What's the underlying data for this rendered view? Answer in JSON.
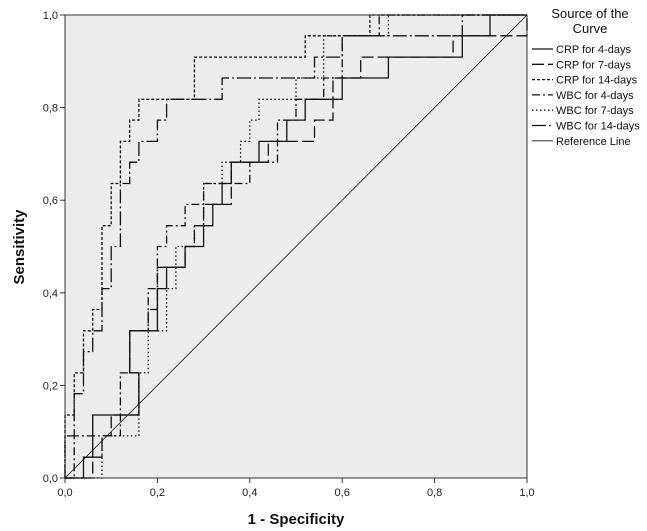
{
  "chart_data": {
    "type": "line",
    "title": "",
    "xlabel": "1 - Specificity",
    "ylabel": "Sensitivity",
    "xlim": [
      0,
      1
    ],
    "ylim": [
      0,
      1
    ],
    "xticks": [
      "0,0",
      "0,2",
      "0,4",
      "0,6",
      "0,8",
      "1,0"
    ],
    "yticks": [
      "0,0",
      "0,2",
      "0,4",
      "0,6",
      "0,8",
      "1,0"
    ],
    "grid": false,
    "plot_background": "#ececec",
    "legend": {
      "title_line1": "Source of the",
      "title_line2": "Curve",
      "placement": "right"
    },
    "series": [
      {
        "name": "CRP for 4-days",
        "dash": "solid",
        "points": [
          [
            0,
            0
          ],
          [
            0.04,
            0
          ],
          [
            0.04,
            0.045
          ],
          [
            0.06,
            0.045
          ],
          [
            0.06,
            0.136
          ],
          [
            0.1,
            0.136
          ],
          [
            0.1,
            0.136
          ],
          [
            0.16,
            0.136
          ],
          [
            0.16,
            0.227
          ],
          [
            0.14,
            0.227
          ],
          [
            0.14,
            0.318
          ],
          [
            0.2,
            0.318
          ],
          [
            0.2,
            0.409
          ],
          [
            0.22,
            0.409
          ],
          [
            0.22,
            0.455
          ],
          [
            0.26,
            0.455
          ],
          [
            0.26,
            0.5
          ],
          [
            0.3,
            0.5
          ],
          [
            0.3,
            0.545
          ],
          [
            0.32,
            0.545
          ],
          [
            0.32,
            0.591
          ],
          [
            0.34,
            0.591
          ],
          [
            0.34,
            0.636
          ],
          [
            0.36,
            0.636
          ],
          [
            0.36,
            0.682
          ],
          [
            0.42,
            0.682
          ],
          [
            0.42,
            0.727
          ],
          [
            0.48,
            0.727
          ],
          [
            0.48,
            0.773
          ],
          [
            0.52,
            0.773
          ],
          [
            0.52,
            0.818
          ],
          [
            0.6,
            0.818
          ],
          [
            0.6,
            0.864
          ],
          [
            0.7,
            0.864
          ],
          [
            0.7,
            0.909
          ],
          [
            0.86,
            0.909
          ],
          [
            0.86,
            0.955
          ],
          [
            0.92,
            0.955
          ],
          [
            0.92,
            1.0
          ],
          [
            1.0,
            1.0
          ]
        ]
      },
      {
        "name": "CRP for 7-days",
        "dash": "longdash",
        "points": [
          [
            0,
            0
          ],
          [
            0.06,
            0
          ],
          [
            0.06,
            0.045
          ],
          [
            0.08,
            0.045
          ],
          [
            0.08,
            0.091
          ],
          [
            0.1,
            0.091
          ],
          [
            0.1,
            0.136
          ],
          [
            0.16,
            0.136
          ],
          [
            0.16,
            0.227
          ],
          [
            0.14,
            0.227
          ],
          [
            0.14,
            0.318
          ],
          [
            0.18,
            0.318
          ],
          [
            0.18,
            0.364
          ],
          [
            0.2,
            0.364
          ],
          [
            0.2,
            0.455
          ],
          [
            0.26,
            0.455
          ],
          [
            0.26,
            0.5
          ],
          [
            0.28,
            0.5
          ],
          [
            0.28,
            0.545
          ],
          [
            0.3,
            0.545
          ],
          [
            0.3,
            0.591
          ],
          [
            0.36,
            0.591
          ],
          [
            0.36,
            0.682
          ],
          [
            0.44,
            0.682
          ],
          [
            0.44,
            0.727
          ],
          [
            0.54,
            0.727
          ],
          [
            0.54,
            0.773
          ],
          [
            0.58,
            0.773
          ],
          [
            0.58,
            0.864
          ],
          [
            0.64,
            0.864
          ],
          [
            0.64,
            0.909
          ],
          [
            0.84,
            0.909
          ],
          [
            0.84,
            0.955
          ],
          [
            1.0,
            0.955
          ],
          [
            1.0,
            1.0
          ]
        ]
      },
      {
        "name": "CRP for 14-days",
        "dash": "shortdash",
        "points": [
          [
            0,
            0
          ],
          [
            0,
            0.136
          ],
          [
            0.02,
            0.136
          ],
          [
            0.02,
            0.227
          ],
          [
            0.04,
            0.227
          ],
          [
            0.04,
            0.318
          ],
          [
            0.06,
            0.318
          ],
          [
            0.06,
            0.364
          ],
          [
            0.08,
            0.364
          ],
          [
            0.08,
            0.545
          ],
          [
            0.1,
            0.545
          ],
          [
            0.1,
            0.636
          ],
          [
            0.12,
            0.636
          ],
          [
            0.12,
            0.727
          ],
          [
            0.14,
            0.727
          ],
          [
            0.14,
            0.773
          ],
          [
            0.16,
            0.773
          ],
          [
            0.16,
            0.818
          ],
          [
            0.28,
            0.818
          ],
          [
            0.28,
            0.909
          ],
          [
            0.52,
            0.909
          ],
          [
            0.52,
            0.955
          ],
          [
            0.66,
            0.955
          ],
          [
            0.66,
            1.0
          ],
          [
            1.0,
            1.0
          ]
        ]
      },
      {
        "name": "WBC for 4-days",
        "dash": "dashdot",
        "points": [
          [
            0,
            0
          ],
          [
            0.02,
            0
          ],
          [
            0.02,
            0.091
          ],
          [
            0.12,
            0.091
          ],
          [
            0.12,
            0.227
          ],
          [
            0.14,
            0.227
          ],
          [
            0.14,
            0.318
          ],
          [
            0.18,
            0.318
          ],
          [
            0.18,
            0.409
          ],
          [
            0.2,
            0.409
          ],
          [
            0.2,
            0.5
          ],
          [
            0.22,
            0.5
          ],
          [
            0.22,
            0.545
          ],
          [
            0.26,
            0.545
          ],
          [
            0.26,
            0.591
          ],
          [
            0.3,
            0.591
          ],
          [
            0.3,
            0.636
          ],
          [
            0.4,
            0.636
          ],
          [
            0.4,
            0.682
          ],
          [
            0.46,
            0.682
          ],
          [
            0.46,
            0.773
          ],
          [
            0.5,
            0.773
          ],
          [
            0.5,
            0.818
          ],
          [
            0.56,
            0.818
          ],
          [
            0.56,
            0.864
          ],
          [
            0.6,
            0.864
          ],
          [
            0.6,
            0.955
          ],
          [
            0.68,
            0.955
          ],
          [
            0.68,
            1.0
          ],
          [
            1.0,
            1.0
          ]
        ]
      },
      {
        "name": "WBC for 7-days",
        "dash": "dotted",
        "points": [
          [
            0,
            0
          ],
          [
            0.08,
            0
          ],
          [
            0.08,
            0.091
          ],
          [
            0.16,
            0.091
          ],
          [
            0.16,
            0.227
          ],
          [
            0.18,
            0.227
          ],
          [
            0.18,
            0.318
          ],
          [
            0.22,
            0.318
          ],
          [
            0.22,
            0.409
          ],
          [
            0.24,
            0.409
          ],
          [
            0.24,
            0.5
          ],
          [
            0.28,
            0.5
          ],
          [
            0.28,
            0.545
          ],
          [
            0.3,
            0.545
          ],
          [
            0.3,
            0.636
          ],
          [
            0.34,
            0.636
          ],
          [
            0.34,
            0.682
          ],
          [
            0.38,
            0.682
          ],
          [
            0.38,
            0.727
          ],
          [
            0.4,
            0.727
          ],
          [
            0.4,
            0.773
          ],
          [
            0.42,
            0.773
          ],
          [
            0.42,
            0.818
          ],
          [
            0.5,
            0.818
          ],
          [
            0.5,
            0.864
          ],
          [
            0.56,
            0.864
          ],
          [
            0.56,
            0.955
          ],
          [
            0.7,
            0.955
          ],
          [
            0.7,
            1.0
          ],
          [
            1.0,
            1.0
          ]
        ]
      },
      {
        "name": "WBC for 14-days",
        "dash": "longdashdot",
        "points": [
          [
            0,
            0
          ],
          [
            0,
            0.091
          ],
          [
            0.02,
            0.091
          ],
          [
            0.02,
            0.182
          ],
          [
            0.04,
            0.182
          ],
          [
            0.04,
            0.273
          ],
          [
            0.06,
            0.273
          ],
          [
            0.06,
            0.318
          ],
          [
            0.08,
            0.318
          ],
          [
            0.08,
            0.409
          ],
          [
            0.1,
            0.409
          ],
          [
            0.1,
            0.5
          ],
          [
            0.12,
            0.5
          ],
          [
            0.12,
            0.636
          ],
          [
            0.14,
            0.636
          ],
          [
            0.14,
            0.682
          ],
          [
            0.16,
            0.682
          ],
          [
            0.16,
            0.727
          ],
          [
            0.2,
            0.727
          ],
          [
            0.2,
            0.773
          ],
          [
            0.22,
            0.773
          ],
          [
            0.22,
            0.818
          ],
          [
            0.3,
            0.818
          ],
          [
            0.3,
            0.818
          ],
          [
            0.34,
            0.818
          ],
          [
            0.34,
            0.864
          ],
          [
            0.54,
            0.864
          ],
          [
            0.54,
            0.909
          ],
          [
            0.6,
            0.909
          ],
          [
            0.6,
            0.955
          ],
          [
            0.86,
            0.955
          ],
          [
            0.86,
            1.0
          ],
          [
            1.0,
            1.0
          ]
        ]
      },
      {
        "name": "Reference Line",
        "dash": "thin",
        "points": [
          [
            0,
            0
          ],
          [
            1,
            1
          ]
        ]
      }
    ]
  }
}
